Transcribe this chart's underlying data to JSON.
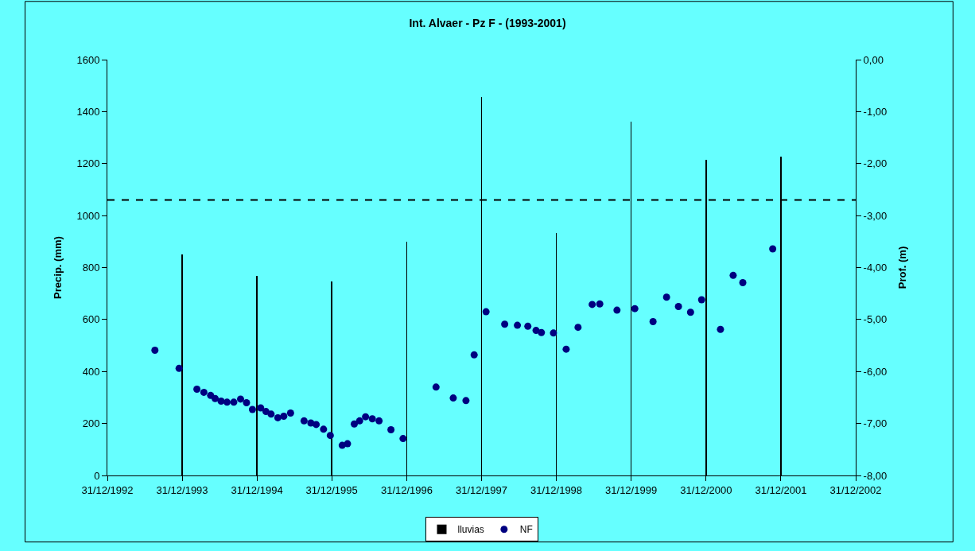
{
  "chart_data": {
    "type": "bar",
    "title": "Int. Alvaer - Pz F - (1993-2001)",
    "ylabel": "Precip. (mm)",
    "y2label": "Prof. (m)",
    "xlim": [
      "1992-12-31",
      "2002-12-31"
    ],
    "xticks": [
      {
        "value": "1992-12-31",
        "label": "31/12/1992"
      },
      {
        "value": "1993-12-31",
        "label": "31/12/1993"
      },
      {
        "value": "1994-12-31",
        "label": "31/12/1994"
      },
      {
        "value": "1995-12-31",
        "label": "31/12/1995"
      },
      {
        "value": "1996-12-31",
        "label": "31/12/1996"
      },
      {
        "value": "1997-12-31",
        "label": "31/12/1997"
      },
      {
        "value": "1998-12-31",
        "label": "31/12/1998"
      },
      {
        "value": "1999-12-31",
        "label": "31/12/1999"
      },
      {
        "value": "2000-12-31",
        "label": "31/12/2000"
      },
      {
        "value": "2001-12-31",
        "label": "31/12/2001"
      },
      {
        "value": "2002-12-31",
        "label": "31/12/2002"
      }
    ],
    "ylim": [
      0,
      1600
    ],
    "yticks": [
      0,
      200,
      400,
      600,
      800,
      1000,
      1200,
      1400,
      1600
    ],
    "y2lim": [
      -8,
      0
    ],
    "y2ticks": [
      {
        "value": -8,
        "label": "-8,00"
      },
      {
        "value": -7,
        "label": "-7,00"
      },
      {
        "value": -6,
        "label": "-6,00"
      },
      {
        "value": -5,
        "label": "-5,00"
      },
      {
        "value": -4,
        "label": "-4,00"
      },
      {
        "value": -3,
        "label": "-3,00"
      },
      {
        "value": -2,
        "label": "-2,00"
      },
      {
        "value": -1,
        "label": "-1,00"
      },
      {
        "value": 0,
        "label": "0,00"
      }
    ],
    "grid": false,
    "legend": "bottom",
    "ref_lines": [
      {
        "axis": "y",
        "value": 1060,
        "line_style": "dashed",
        "color": "#000000"
      }
    ],
    "series": [
      {
        "name": "lluvias",
        "color": "#000000",
        "x": [
          "1993-12-31",
          "1994-12-31",
          "1995-12-31",
          "1996-12-31",
          "1997-12-31",
          "1998-12-31",
          "1999-12-31",
          "2000-12-31",
          "2001-12-31"
        ],
        "values": [
          850,
          768,
          747,
          899,
          1457,
          933,
          1362,
          1215,
          1228
        ]
      },
      {
        "name": "NF",
        "type": "scatter",
        "axis": "y2",
        "marker": "circle",
        "color": "#000080",
        "x": [
          "1993-08-20",
          "1993-12-16",
          "1994-03-13",
          "1994-04-16",
          "1994-05-19",
          "1994-06-10",
          "1994-07-09",
          "1994-08-07",
          "1994-09-09",
          "1994-10-12",
          "1994-11-10",
          "1994-12-09",
          "1995-01-18",
          "1995-02-13",
          "1995-03-10",
          "1995-04-12",
          "1995-05-11",
          "1995-06-13",
          "1995-08-18",
          "1995-09-20",
          "1995-10-16",
          "1995-11-21",
          "1995-12-24",
          "1996-02-20",
          "1996-03-17",
          "1996-04-19",
          "1996-05-15",
          "1996-06-13",
          "1996-07-16",
          "1996-08-18",
          "1996-10-15",
          "1996-12-13",
          "1997-05-23",
          "1997-08-15",
          "1997-10-16",
          "1997-11-25",
          "1998-01-22",
          "1998-04-23",
          "1998-06-24",
          "1998-08-14",
          "1998-09-23",
          "1998-10-19",
          "1998-12-17",
          "1999-02-17",
          "1999-04-16",
          "1999-06-24",
          "1999-07-31",
          "1999-10-23",
          "2000-01-18",
          "2000-04-16",
          "2000-06-21",
          "2000-08-18",
          "2000-10-16",
          "2000-12-09",
          "2001-03-11",
          "2001-05-12",
          "2001-06-28",
          "2001-11-21"
        ],
        "values": [
          -5.59,
          -5.94,
          -6.34,
          -6.4,
          -6.46,
          -6.52,
          -6.57,
          -6.59,
          -6.59,
          -6.53,
          -6.6,
          -6.73,
          -6.7,
          -6.77,
          -6.82,
          -6.89,
          -6.86,
          -6.8,
          -6.95,
          -6.99,
          -7.02,
          -7.11,
          -7.23,
          -7.42,
          -7.39,
          -7.01,
          -6.95,
          -6.87,
          -6.91,
          -6.95,
          -7.12,
          -7.29,
          -6.3,
          -6.51,
          -6.56,
          -5.68,
          -4.85,
          -5.09,
          -5.11,
          -5.13,
          -5.21,
          -5.25,
          -5.26,
          -5.57,
          -5.15,
          -4.71,
          -4.7,
          -4.82,
          -4.79,
          -5.04,
          -4.57,
          -4.75,
          -4.86,
          -4.62,
          -5.19,
          -4.15,
          -4.29,
          -3.64
        ]
      }
    ]
  }
}
